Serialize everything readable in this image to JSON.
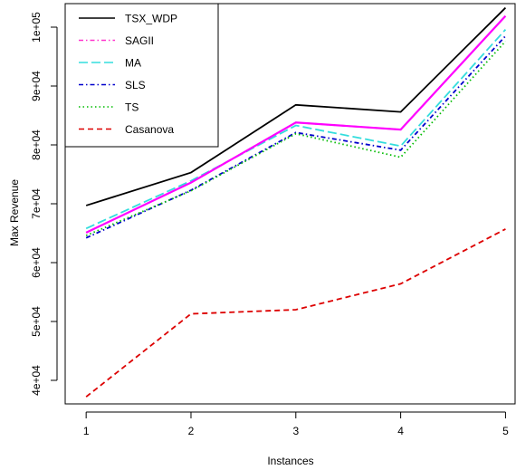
{
  "chart_data": {
    "type": "line",
    "title": "",
    "xlabel": "Instances",
    "ylabel": "Max Revenue",
    "x": [
      1,
      2,
      3,
      4,
      5
    ],
    "x_tick_labels": [
      "1",
      "2",
      "3",
      "4",
      "5"
    ],
    "xlim": [
      0.8,
      5.1
    ],
    "y_ticks": [
      40000,
      50000,
      60000,
      70000,
      80000,
      90000,
      100000
    ],
    "y_tick_labels": [
      "4e+04",
      "5e+04",
      "6e+04",
      "7e+04",
      "8e+04",
      "9e+04",
      "1e+05"
    ],
    "ylim": [
      36000,
      104000
    ],
    "grid": false,
    "legend_position": "top-left",
    "series": [
      {
        "name": "TSX_WDP",
        "values": [
          69700,
          75300,
          86800,
          85600,
          103300
        ],
        "color": "#000000",
        "dash": "solid"
      },
      {
        "name": "SAGII",
        "values": [
          65100,
          73600,
          83800,
          82600,
          101900
        ],
        "color": "#ff33cc",
        "dash": "dash-dot"
      },
      {
        "name": "MA",
        "values": [
          65800,
          73900,
          83300,
          79800,
          99600
        ],
        "color": "#33dddd",
        "dash": "long-dash"
      },
      {
        "name": "SLS",
        "values": [
          64200,
          72300,
          82100,
          79100,
          98500
        ],
        "color": "#0000cc",
        "dash": "dash-dot"
      },
      {
        "name": "TS",
        "values": [
          64600,
          72200,
          81900,
          77900,
          97600
        ],
        "color": "#00bb00",
        "dash": "dotted"
      },
      {
        "name": "Casanova",
        "values": [
          37200,
          51300,
          52000,
          56400,
          65700
        ],
        "color": "#dd0000",
        "dash": "dashed"
      }
    ],
    "overlay_series": "SAGII",
    "overlay_color": "#ff00ff"
  }
}
